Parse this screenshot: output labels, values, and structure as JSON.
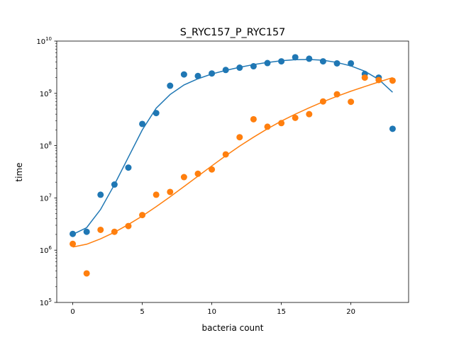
{
  "chart_data": {
    "type": "scatter",
    "title": "S_RYC157_P_RYC157",
    "xlabel": "bacteria count",
    "ylabel": "time",
    "yscale": "log",
    "xlim": [
      -1.15,
      24.15
    ],
    "ylim": [
      100000,
      10000000000
    ],
    "x_ticks": [
      0,
      5,
      10,
      15,
      20
    ],
    "y_ticks": [
      {
        "base": "10",
        "exp": "5",
        "value": 100000
      },
      {
        "base": "10",
        "exp": "6",
        "value": 1000000
      },
      {
        "base": "10",
        "exp": "7",
        "value": 10000000
      },
      {
        "base": "10",
        "exp": "8",
        "value": 100000000
      },
      {
        "base": "10",
        "exp": "9",
        "value": 1000000000
      },
      {
        "base": "10",
        "exp": "10",
        "value": 10000000000
      }
    ],
    "grid": false,
    "legend": "none",
    "series": [
      {
        "color": "#1f77b4",
        "points": {
          "x": [
            0,
            1,
            2,
            3,
            4,
            5,
            6,
            7,
            8,
            9,
            10,
            11,
            12,
            13,
            14,
            15,
            16,
            17,
            18,
            19,
            20,
            21,
            22,
            23
          ],
          "y": [
            2050000,
            2250000,
            11500000,
            18000000,
            38000000,
            260000000,
            420000000,
            1400000000,
            2300000000,
            2150000000,
            2400000000,
            2800000000,
            3100000000,
            3300000000,
            3800000000,
            4100000000,
            4900000000,
            4600000000,
            4100000000,
            3750000000,
            3750000000,
            2350000000,
            2000000000,
            210000000
          ]
        },
        "fit": {
          "x": [
            0,
            1,
            2,
            3,
            4,
            5,
            6,
            7,
            8,
            9,
            10,
            11,
            12,
            13,
            14,
            15,
            16,
            17,
            18,
            19,
            20,
            21,
            22,
            23
          ],
          "y": [
            2000000,
            2700000,
            6000000,
            18000000,
            60000000,
            200000000,
            520000000,
            950000000,
            1450000000,
            1900000000,
            2350000000,
            2750000000,
            3150000000,
            3550000000,
            3900000000,
            4200000000,
            4400000000,
            4450000000,
            4300000000,
            3900000000,
            3350000000,
            2650000000,
            1850000000,
            1050000000
          ]
        }
      },
      {
        "color": "#ff7f0e",
        "points": {
          "x": [
            0,
            1,
            2,
            3,
            4,
            5,
            6,
            7,
            8,
            9,
            10,
            11,
            12,
            13,
            14,
            15,
            16,
            17,
            18,
            19,
            20,
            21,
            22,
            23
          ],
          "y": [
            1320000,
            360000,
            2450000,
            2250000,
            2900000,
            4700000,
            11500000,
            13000000,
            25000000,
            29000000,
            35000000,
            68000000,
            145000000,
            320000000,
            230000000,
            270000000,
            340000000,
            400000000,
            700000000,
            960000000,
            690000000,
            2000000000,
            1800000000,
            1750000000
          ]
        },
        "fit": {
          "x": [
            0,
            1,
            2,
            3,
            4,
            5,
            6,
            7,
            8,
            9,
            10,
            11,
            12,
            13,
            14,
            15,
            16,
            17,
            18,
            19,
            20,
            21,
            22,
            23
          ],
          "y": [
            1150000,
            1300000,
            1650000,
            2200000,
            3100000,
            4500000,
            6800000,
            10500000,
            16500000,
            26000000,
            41000000,
            64000000,
            98000000,
            145000000,
            210000000,
            295000000,
            400000000,
            530000000,
            690000000,
            880000000,
            1100000000,
            1350000000,
            1650000000,
            2000000000
          ]
        }
      }
    ]
  }
}
